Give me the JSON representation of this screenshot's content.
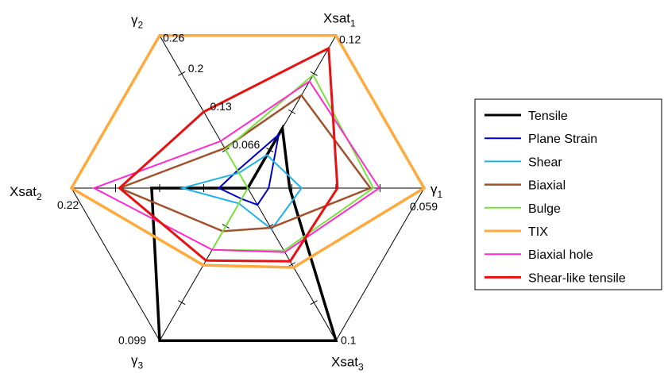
{
  "chart_data": {
    "type": "radar",
    "title": "",
    "axes": [
      {
        "name": "γ",
        "subscript": "1",
        "max": 0.059,
        "max_label": "0.059"
      },
      {
        "name": "Xsat",
        "subscript": "1",
        "max": 0.12,
        "max_label": "0.12"
      },
      {
        "name": "γ",
        "subscript": "2",
        "max": 0.26,
        "max_label": "0.26",
        "tick_labels": [
          "0.2",
          "0.13",
          "0.066"
        ]
      },
      {
        "name": "Xsat",
        "subscript": "2",
        "max": 0.22,
        "max_label": "0.22"
      },
      {
        "name": "γ",
        "subscript": "3",
        "max": 0.099,
        "max_label": "0.099"
      },
      {
        "name": "Xsat",
        "subscript": "3",
        "max": 0.1,
        "max_label": "0.1"
      }
    ],
    "ticks_per_axis": 4,
    "grid": false,
    "legend_position": "right",
    "series": [
      {
        "name": "Tensile",
        "color": "#000000",
        "width": 3.5,
        "values": [
          0.014,
          0.047,
          0.0,
          0.12,
          0.099,
          0.1
        ]
      },
      {
        "name": "Plane Strain",
        "color": "#0000cc",
        "width": 2,
        "values": [
          0.007,
          0.042,
          0.03,
          0.036,
          0.007,
          0.011
        ]
      },
      {
        "name": "Shear",
        "color": "#1fb2e8",
        "width": 2,
        "values": [
          0.018,
          0.026,
          0.026,
          0.082,
          0.01,
          0.027
        ]
      },
      {
        "name": "Biaxial",
        "color": "#a0522d",
        "width": 2.5,
        "values": [
          0.041,
          0.073,
          0.068,
          0.16,
          0.028,
          0.026
        ]
      },
      {
        "name": "Bulge",
        "color": "#78e23c",
        "width": 2,
        "values": [
          0.042,
          0.089,
          0.066,
          0.0,
          0.04,
          0.041
        ]
      },
      {
        "name": "TIX",
        "color": "#ffaa3c",
        "width": 3.5,
        "values": [
          0.059,
          0.12,
          0.26,
          0.22,
          0.05,
          0.052
        ]
      },
      {
        "name": "Biaxial hole",
        "color": "#ff2ad0",
        "width": 2,
        "values": [
          0.044,
          0.084,
          0.08,
          0.192,
          0.04,
          0.042
        ]
      },
      {
        "name": "Shear-like tensile",
        "color": "#e81010",
        "width": 3,
        "values": [
          0.03,
          0.11,
          0.13,
          0.16,
          0.047,
          0.048
        ]
      }
    ]
  }
}
